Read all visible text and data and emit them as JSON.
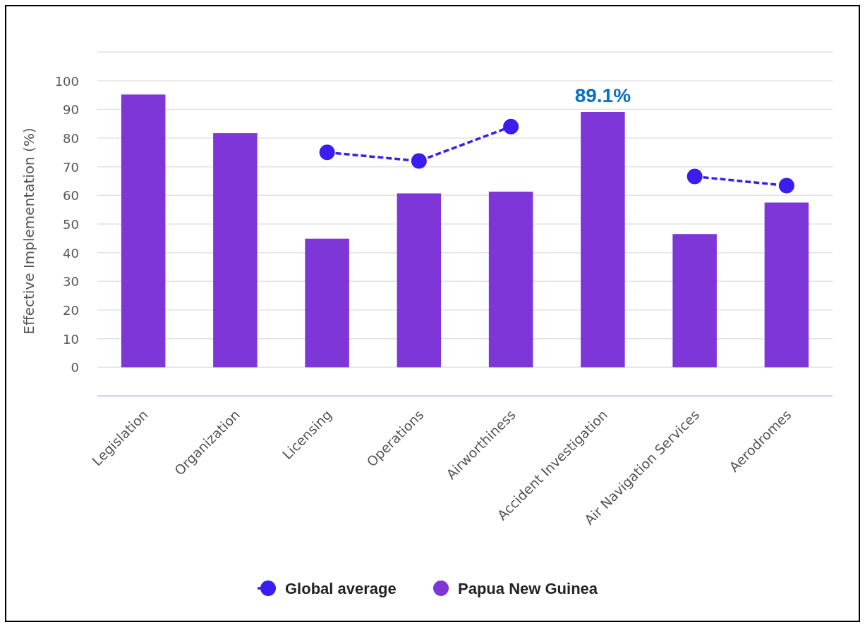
{
  "chart_data": {
    "type": "bar",
    "ylabel": "Effective Implementation (%)",
    "categories": [
      "Legislation",
      "Organization",
      "Licensing",
      "Operations",
      "Airworthiness",
      "Accident Investigation",
      "Air Navigation Services",
      "Aerodromes"
    ],
    "series": [
      {
        "name": "Global average",
        "type": "line",
        "color": "#3a1ef0",
        "marker": "circle",
        "line_style": "dashed",
        "values": [
          null,
          null,
          75,
          72,
          84,
          null,
          66.6,
          63.4
        ]
      },
      {
        "name": "Papua New Guinea",
        "color": "#7e36d9",
        "values": [
          95.2,
          81.7,
          44.9,
          60.7,
          61.3,
          89.1,
          46.5,
          57.5
        ],
        "value_labels": [
          null,
          null,
          null,
          null,
          null,
          "89.1%",
          null,
          null
        ]
      }
    ],
    "ylim": [
      -10,
      110
    ],
    "yticks": [
      0,
      10,
      20,
      30,
      40,
      50,
      60,
      70,
      80,
      90,
      100,
      {
        "value": 110,
        "label": null
      }
    ],
    "grid": "y",
    "legend": "bottom"
  }
}
